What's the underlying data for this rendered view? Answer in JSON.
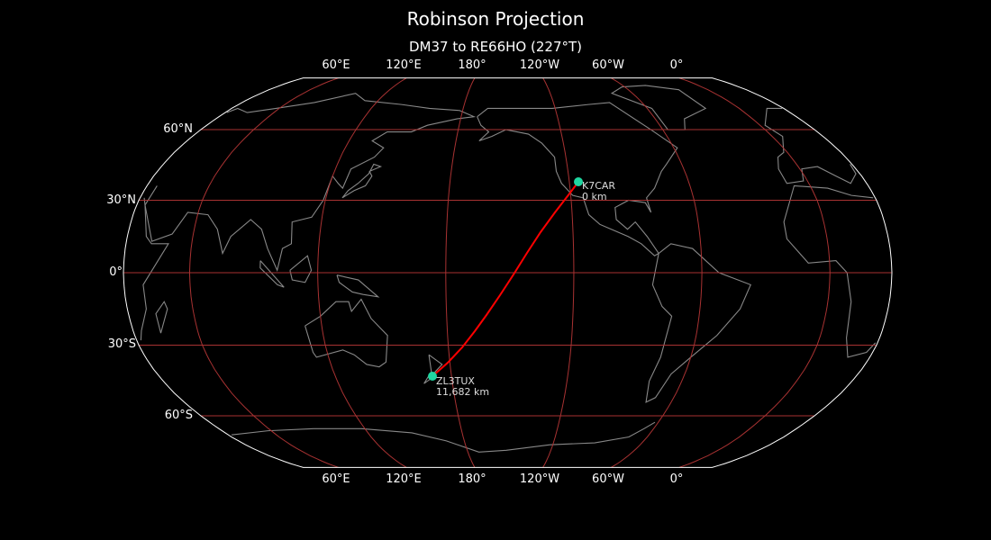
{
  "title": "Robinson Projection",
  "subtitle": "DM37 to RE66HO (227°T)",
  "lon_ticks_top": [
    "60°E",
    "120°E",
    "180°",
    "120°W",
    "60°W",
    "0°"
  ],
  "lon_ticks_bottom": [
    "60°E",
    "120°E",
    "180°",
    "120°W",
    "60°W",
    "0°"
  ],
  "lat_ticks": [
    "60°N",
    "30°N",
    "0°",
    "30°S",
    "60°S"
  ],
  "stations": [
    {
      "call": "K7CAR",
      "distance": "0 km"
    },
    {
      "call": "ZL3TUX",
      "distance": "11,682 km"
    }
  ],
  "colors": {
    "background": "#000000",
    "coastline": "#888888",
    "gridline": "#a83232",
    "path": "#ff0000",
    "marker": "#1fd6a0",
    "outline": "#ffffff"
  }
}
